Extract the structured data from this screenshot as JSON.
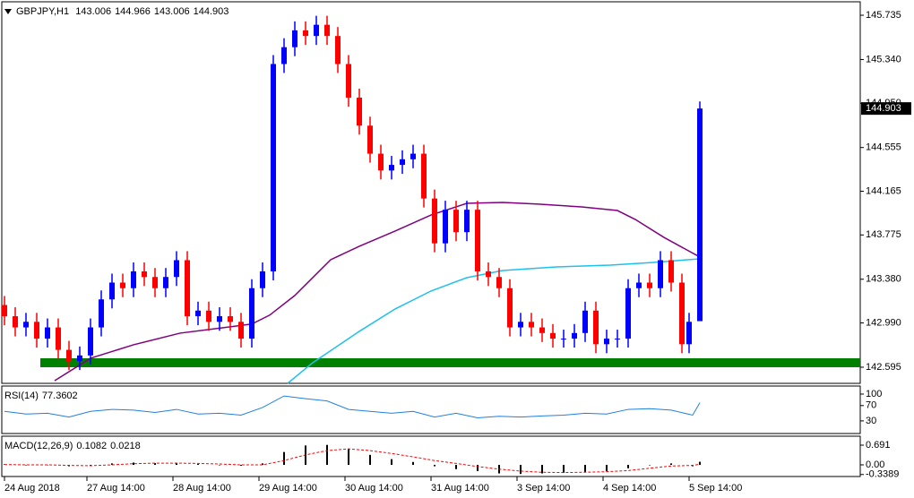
{
  "chart_data": [
    {
      "type": "candlestick",
      "symbol": "GBPJPY,H1",
      "header_values": [
        143.006,
        144.966,
        143.006,
        144.903
      ],
      "up_color": "#0000ff",
      "down_color": "#ff0000",
      "x": [
        0,
        3,
        6,
        9,
        12,
        15,
        18,
        21,
        24,
        27,
        30,
        33,
        36,
        39,
        42,
        45,
        48,
        51,
        54,
        57,
        60,
        63,
        66,
        69,
        72,
        75,
        78,
        81,
        84,
        87,
        90,
        93,
        96,
        99,
        102,
        105,
        108,
        111,
        114,
        117,
        120,
        123,
        126,
        129,
        132,
        135,
        138,
        141,
        144,
        147,
        150,
        153,
        156,
        159,
        162,
        165,
        168,
        171,
        174,
        177,
        180,
        183,
        186,
        189,
        191,
        194
      ],
      "open": [
        143.15,
        143.05,
        142.95,
        143.0,
        142.85,
        142.95,
        142.75,
        142.65,
        142.7,
        142.95,
        143.2,
        143.35,
        143.3,
        143.45,
        143.4,
        143.3,
        143.4,
        143.55,
        143.05,
        143.1,
        143.0,
        143.05,
        143.0,
        142.85,
        143.3,
        143.45,
        145.3,
        145.45,
        145.6,
        145.55,
        145.65,
        145.55,
        145.3,
        145.0,
        144.75,
        144.5,
        144.35,
        144.4,
        144.45,
        144.5,
        144.1,
        143.7,
        144.0,
        143.8,
        144.0,
        143.45,
        143.4,
        143.3,
        142.95,
        143.0,
        142.95,
        142.9,
        142.85,
        142.85,
        142.9,
        143.1,
        142.8,
        142.85,
        142.85,
        143.3,
        143.35,
        143.3,
        143.55,
        143.35,
        142.8,
        143.006
      ],
      "high": [
        143.23,
        143.13,
        143.08,
        143.08,
        143.03,
        143.03,
        142.83,
        142.78,
        143.03,
        143.28,
        143.43,
        143.43,
        143.53,
        143.53,
        143.48,
        143.48,
        143.63,
        143.63,
        143.18,
        143.18,
        143.13,
        143.13,
        143.08,
        143.38,
        143.53,
        145.38,
        145.53,
        145.68,
        145.68,
        145.73,
        145.73,
        145.63,
        145.38,
        145.08,
        144.83,
        144.58,
        144.48,
        144.53,
        144.58,
        144.58,
        144.18,
        144.08,
        144.08,
        144.08,
        144.08,
        143.53,
        143.48,
        143.38,
        143.08,
        143.08,
        143.03,
        142.98,
        142.93,
        142.98,
        143.18,
        143.18,
        142.93,
        142.93,
        143.38,
        143.43,
        143.43,
        143.63,
        143.63,
        143.43,
        143.08,
        144.966
      ],
      "low": [
        142.97,
        142.87,
        142.87,
        142.77,
        142.77,
        142.67,
        142.57,
        142.57,
        142.62,
        142.87,
        143.12,
        143.22,
        143.22,
        143.32,
        143.22,
        143.22,
        143.32,
        142.97,
        142.97,
        142.92,
        142.92,
        142.92,
        142.77,
        142.77,
        143.22,
        143.37,
        145.22,
        145.37,
        145.47,
        145.47,
        145.47,
        145.22,
        144.92,
        144.67,
        144.42,
        144.27,
        144.27,
        144.32,
        144.37,
        144.02,
        143.62,
        143.62,
        143.72,
        143.72,
        143.37,
        143.32,
        143.22,
        142.87,
        142.87,
        142.87,
        142.82,
        142.77,
        142.77,
        142.77,
        142.82,
        142.72,
        142.72,
        142.77,
        142.77,
        143.22,
        143.22,
        143.22,
        143.27,
        142.72,
        142.72,
        143.006
      ],
      "close": [
        143.05,
        142.95,
        143.0,
        142.85,
        142.95,
        142.75,
        142.65,
        142.7,
        142.95,
        143.2,
        143.35,
        143.3,
        143.45,
        143.4,
        143.3,
        143.4,
        143.55,
        143.05,
        143.1,
        143.0,
        143.05,
        143.0,
        142.85,
        143.3,
        143.45,
        145.3,
        145.45,
        145.6,
        145.55,
        145.65,
        145.55,
        145.3,
        145.0,
        144.75,
        144.5,
        144.35,
        144.4,
        144.45,
        144.5,
        144.1,
        143.7,
        144.0,
        143.8,
        144.0,
        143.45,
        143.4,
        143.3,
        142.95,
        143.0,
        142.95,
        142.9,
        142.85,
        142.85,
        142.9,
        143.1,
        142.8,
        142.85,
        142.85,
        143.3,
        143.35,
        143.3,
        143.55,
        143.35,
        142.8,
        143.0,
        144.903
      ],
      "series": [
        {
          "color": "#800080",
          "x": [
            14,
            24,
            36,
            49,
            61,
            69,
            74,
            81,
            91,
            99,
            109,
            119,
            129,
            139,
            149,
            161,
            171,
            176,
            184,
            194
          ],
          "values": [
            142.475,
            142.675,
            142.795,
            142.899,
            142.947,
            142.98,
            143.06,
            143.235,
            143.554,
            143.674,
            143.81,
            143.953,
            144.057,
            144.065,
            144.05,
            144.025,
            143.993,
            143.913,
            143.753,
            143.578
          ]
        },
        {
          "color": "#1ec0ee",
          "x": [
            79,
            86,
            99,
            109,
            119,
            129,
            139,
            154,
            169,
            181,
            194
          ],
          "values": [
            142.451,
            142.635,
            142.915,
            143.115,
            143.275,
            143.394,
            143.458,
            143.49,
            143.506,
            143.53,
            143.562
          ]
        }
      ],
      "support_zone": {
        "color": "#008000",
        "x_start": 10,
        "low": 142.595,
        "high": 142.675
      },
      "xlim": [
        -0.75,
        238.75
      ],
      "xticks": [
        {
          "value": 0,
          "label": "24 Aug 2018"
        },
        {
          "value": 23,
          "label": "27 Aug 14:00"
        },
        {
          "value": 47,
          "label": "28 Aug 14:00"
        },
        {
          "value": 71,
          "label": "29 Aug 14:00"
        },
        {
          "value": 95,
          "label": "30 Aug 14:00"
        },
        {
          "value": 119,
          "label": "31 Aug 14:00"
        },
        {
          "value": 143,
          "label": "3 Sep 14:00"
        },
        {
          "value": 167,
          "label": "4 Sep 14:00"
        },
        {
          "value": 191,
          "label": "5 Sep 14:00"
        }
      ],
      "ylim": [
        142.451,
        145.855
      ],
      "yticks": [
        145.735,
        {
          "value": 145.34,
          "label": "145.340"
        },
        {
          "value": 144.95,
          "label": "144.950"
        },
        144.555,
        144.165,
        143.775,
        {
          "value": 143.38,
          "label": "143.380"
        },
        {
          "value": 142.99,
          "label": "142.990"
        },
        142.595
      ]
    },
    {
      "type": "line",
      "title": "RSI(14)",
      "title_value": 77.3602,
      "color": "#2080e0",
      "x": [
        0,
        6,
        12,
        18,
        24,
        30,
        36,
        42,
        48,
        54,
        60,
        66,
        72,
        78,
        84,
        90,
        96,
        102,
        108,
        114,
        120,
        126,
        132,
        138,
        144,
        150,
        156,
        162,
        168,
        174,
        180,
        186,
        192,
        194
      ],
      "values": [
        55,
        48,
        50,
        40,
        55,
        60,
        58,
        52,
        60,
        48,
        50,
        45,
        65,
        95,
        88,
        82,
        60,
        55,
        50,
        55,
        40,
        50,
        38,
        42,
        40,
        43,
        45,
        50,
        48,
        60,
        62,
        58,
        45,
        77.3602
      ],
      "ylim": [
        -3,
        121
      ],
      "yticks": [
        100,
        70,
        30
      ]
    },
    {
      "type": "macd",
      "title": "MACD(12,26,9)",
      "title_values": [
        0.1082,
        0.0218
      ],
      "hist_color": "#000000",
      "signal_color": "#ff0000",
      "x": [
        0,
        6,
        12,
        18,
        24,
        30,
        36,
        42,
        48,
        54,
        60,
        66,
        72,
        78,
        84,
        90,
        96,
        102,
        108,
        114,
        120,
        126,
        132,
        138,
        144,
        150,
        156,
        162,
        168,
        174,
        180,
        186,
        192,
        194
      ],
      "histogram": [
        0.02,
        -0.01,
        0.0,
        -0.05,
        -0.02,
        0.05,
        0.08,
        0.06,
        0.07,
        0.03,
        0.0,
        -0.03,
        0.05,
        0.45,
        0.68,
        0.7,
        0.55,
        0.35,
        0.2,
        0.1,
        -0.05,
        -0.15,
        -0.22,
        -0.3,
        -0.32,
        -0.3,
        -0.28,
        -0.25,
        -0.22,
        -0.12,
        0.0,
        0.05,
        -0.05,
        0.1082
      ],
      "signal": [
        0.01,
        0.0,
        0.0,
        -0.02,
        -0.03,
        0.0,
        0.04,
        0.06,
        0.06,
        0.05,
        0.03,
        0.0,
        0.0,
        0.15,
        0.35,
        0.5,
        0.56,
        0.5,
        0.4,
        0.28,
        0.15,
        0.05,
        -0.06,
        -0.15,
        -0.22,
        -0.26,
        -0.27,
        -0.26,
        -0.24,
        -0.2,
        -0.12,
        -0.04,
        -0.02,
        0.0218
      ],
      "ylim": [
        -0.409,
        1.005
      ],
      "yticks": [
        0.691,
        {
          "value": 0,
          "label": "0.00"
        },
        -0.3389
      ]
    }
  ]
}
